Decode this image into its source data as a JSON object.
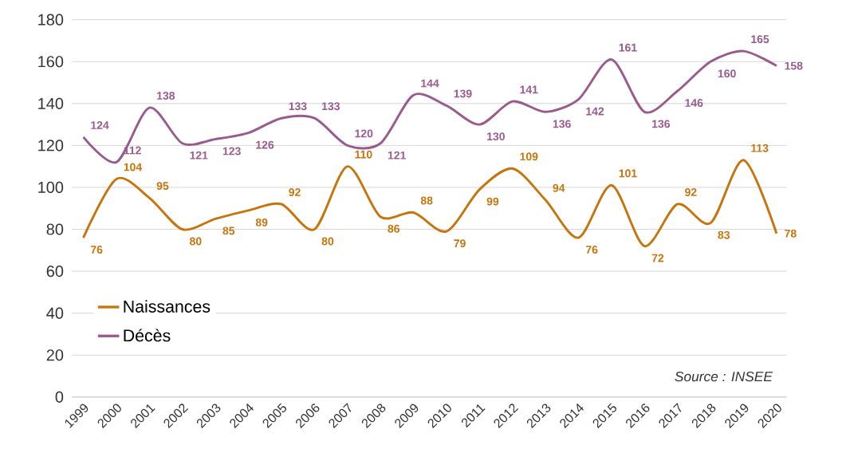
{
  "chart_data": {
    "type": "line",
    "categories": [
      "1999",
      "2000",
      "2001",
      "2002",
      "2003",
      "2004",
      "2005",
      "2006",
      "2007",
      "2008",
      "2009",
      "2010",
      "2011",
      "2012",
      "2013",
      "2014",
      "2015",
      "2016",
      "2017",
      "2018",
      "2019",
      "2020"
    ],
    "series": [
      {
        "name": "Naissances",
        "color": "#c8740c",
        "values": [
          76,
          104,
          95,
          80,
          85,
          89,
          92,
          80,
          110,
          86,
          88,
          79,
          99,
          109,
          94,
          76,
          101,
          72,
          92,
          83,
          113,
          78
        ]
      },
      {
        "name": "Décès",
        "color": "#9a5a8e",
        "values": [
          124,
          112,
          138,
          121,
          123,
          126,
          133,
          133,
          120,
          121,
          144,
          139,
          130,
          141,
          136,
          142,
          161,
          136,
          146,
          160,
          165,
          158
        ]
      }
    ],
    "ylim": [
      0,
      180
    ],
    "yticks": [
      0,
      20,
      40,
      60,
      80,
      100,
      120,
      140,
      160,
      180
    ],
    "grid": "y",
    "legend": "left",
    "data_labels": true,
    "marker": "none",
    "line_style": "solid",
    "annotations": [
      "Source : INSEE"
    ]
  }
}
